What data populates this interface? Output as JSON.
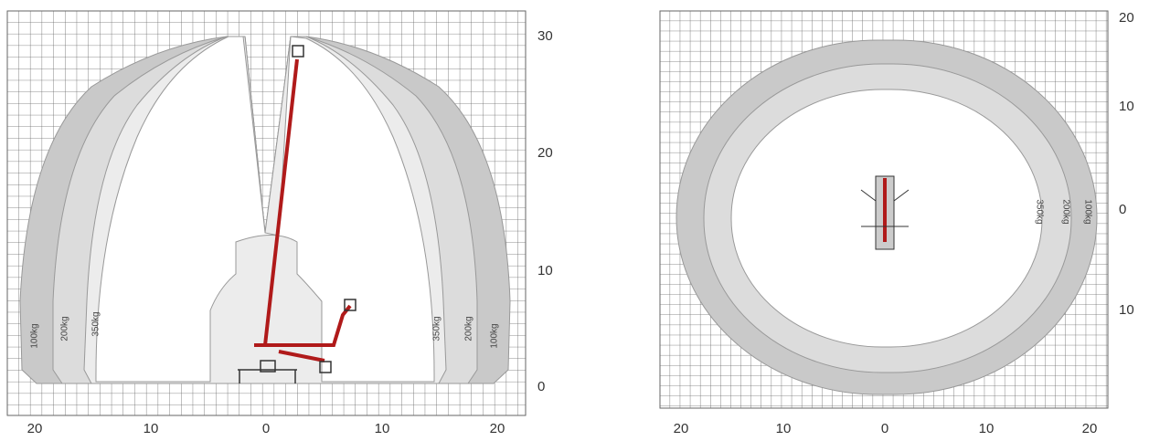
{
  "side_view": {
    "x_labels": [
      "20",
      "10",
      "0",
      "10",
      "20"
    ],
    "y_labels": [
      "30",
      "20",
      "10",
      "0"
    ],
    "load_labels_left": [
      "100kg",
      "200kg",
      "350kg"
    ],
    "load_labels_right": [
      "350kg",
      "200kg",
      "100kg"
    ]
  },
  "top_view": {
    "x_labels": [
      "20",
      "10",
      "0",
      "10",
      "20"
    ],
    "y_labels": [
      "20",
      "10",
      "0",
      "10"
    ],
    "load_labels": [
      "350kg",
      "200kg",
      "100kg"
    ]
  }
}
